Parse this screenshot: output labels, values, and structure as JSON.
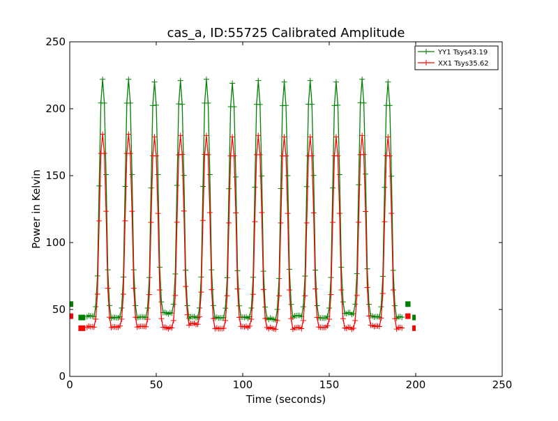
{
  "chart_data": {
    "type": "line",
    "title": "cas_a, ID:55725 Calibrated Amplitude",
    "xlabel": "Time (seconds)",
    "ylabel": "Power in Kelvin",
    "xlim": [
      0,
      250
    ],
    "ylim": [
      0,
      250
    ],
    "xticks": [
      0,
      50,
      100,
      150,
      200,
      250
    ],
    "yticks": [
      0,
      50,
      100,
      150,
      200,
      250
    ],
    "grid": false,
    "legend_position": "top-right",
    "marker": "plus",
    "peak_centers": [
      19,
      34,
      49,
      64,
      79,
      94,
      109,
      124,
      139,
      154,
      169,
      184
    ],
    "series": [
      {
        "name": "YY1 Tsys43.19",
        "color": "#008000",
        "baselines": [
          45,
          44,
          44,
          47,
          44,
          44,
          44,
          43,
          45,
          44,
          47,
          45,
          44
        ],
        "peaks": [
          222,
          222,
          220,
          221,
          222,
          219,
          221,
          220,
          221,
          220,
          222,
          220
        ],
        "start_segments": [
          [
            0,
            2,
            54
          ],
          [
            5,
            9,
            44
          ]
        ],
        "end_segments": [
          [
            194,
            197,
            54
          ],
          [
            198,
            200,
            44
          ]
        ]
      },
      {
        "name": "XX1 Tsys35.62",
        "color": "#ff0000",
        "baselines": [
          37,
          37,
          37,
          36,
          39,
          36,
          37,
          36,
          36,
          37,
          36,
          38,
          36
        ],
        "peaks": [
          181,
          181,
          179,
          180,
          180,
          179,
          180,
          179,
          179,
          179,
          180,
          179
        ],
        "start_segments": [
          [
            0,
            2,
            45
          ],
          [
            5,
            9,
            36
          ]
        ],
        "end_segments": [
          [
            194,
            197,
            45
          ],
          [
            198,
            200,
            36
          ]
        ]
      }
    ]
  }
}
